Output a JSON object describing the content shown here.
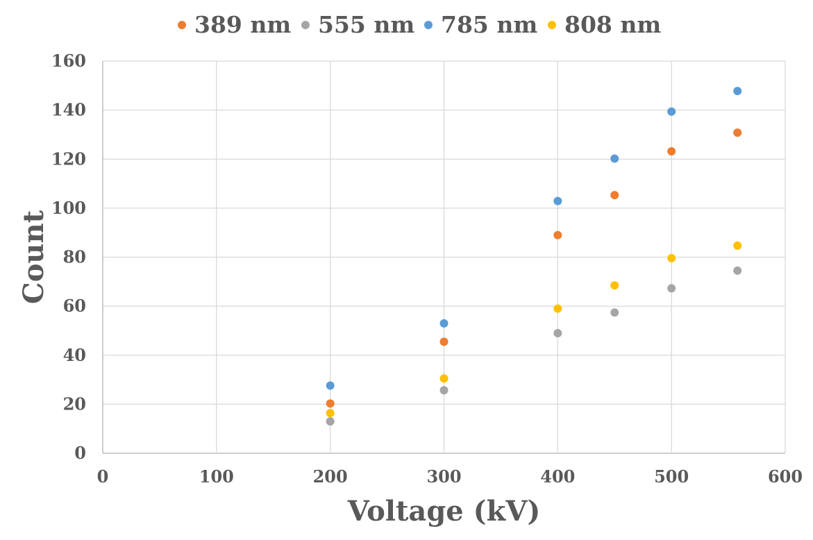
{
  "chart_data": {
    "type": "scatter",
    "title": "",
    "xlabel": "Voltage (kV)",
    "ylabel": "Count",
    "xlim": [
      0,
      600
    ],
    "ylim": [
      0,
      160
    ],
    "xticks": [
      0,
      100,
      200,
      300,
      400,
      500,
      600
    ],
    "yticks": [
      0,
      20,
      40,
      60,
      80,
      100,
      120,
      140,
      160
    ],
    "grid": true,
    "legend_position": "top",
    "series": [
      {
        "name": "389 nm",
        "color": "#ED7D31",
        "points": [
          [
            200,
            20.3
          ],
          [
            300,
            45.5
          ],
          [
            400,
            89
          ],
          [
            450,
            105.3
          ],
          [
            500,
            123.2
          ],
          [
            558,
            130.8
          ]
        ]
      },
      {
        "name": "555 nm",
        "color": "#A5A5A5",
        "points": [
          [
            200,
            13
          ],
          [
            300,
            25.7
          ],
          [
            400,
            49
          ],
          [
            450,
            57.4
          ],
          [
            500,
            67.3
          ],
          [
            558,
            74.5
          ]
        ]
      },
      {
        "name": "785 nm",
        "color": "#5B9BD5",
        "points": [
          [
            200,
            27.6
          ],
          [
            300,
            53
          ],
          [
            400,
            102.9
          ],
          [
            450,
            120.2
          ],
          [
            500,
            139.4
          ],
          [
            558,
            147.8
          ]
        ]
      },
      {
        "name": "808 nm",
        "color": "#FFC000",
        "points": [
          [
            200,
            16.4
          ],
          [
            300,
            30.5
          ],
          [
            400,
            59
          ],
          [
            450,
            68.5
          ],
          [
            500,
            79.6
          ],
          [
            558,
            84.7
          ]
        ]
      }
    ]
  }
}
